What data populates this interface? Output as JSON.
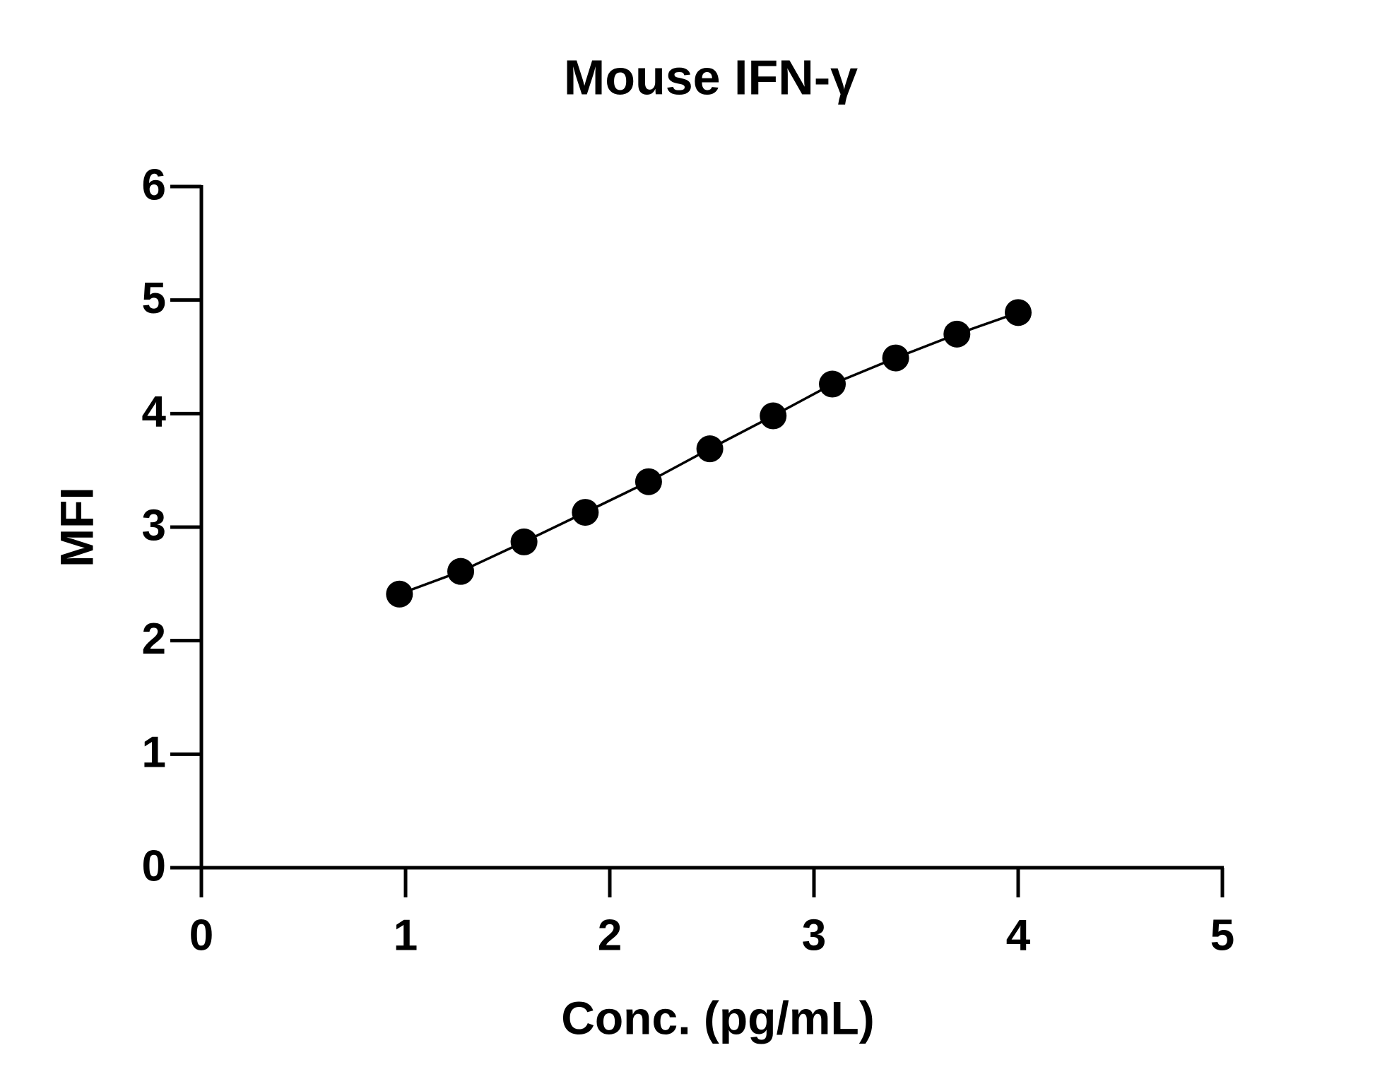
{
  "chart_data": {
    "type": "line",
    "title": "Mouse IFN-γ",
    "x_label": "Conc. (pg/mL)",
    "y_label": "MFI",
    "x": [
      0.97,
      1.27,
      1.58,
      1.88,
      2.19,
      2.49,
      2.8,
      3.09,
      3.4,
      3.7,
      4.0
    ],
    "values": [
      2.41,
      2.61,
      2.87,
      3.13,
      3.4,
      3.69,
      3.98,
      4.26,
      4.49,
      4.7,
      4.89
    ],
    "color": "#000000",
    "markers": true,
    "xlim": [
      0,
      5
    ],
    "xticks": [
      0,
      1,
      2,
      3,
      4,
      5
    ],
    "ylim": [
      0,
      6
    ],
    "yticks": [
      0,
      1,
      2,
      3,
      4,
      5,
      6
    ],
    "grid": false
  }
}
